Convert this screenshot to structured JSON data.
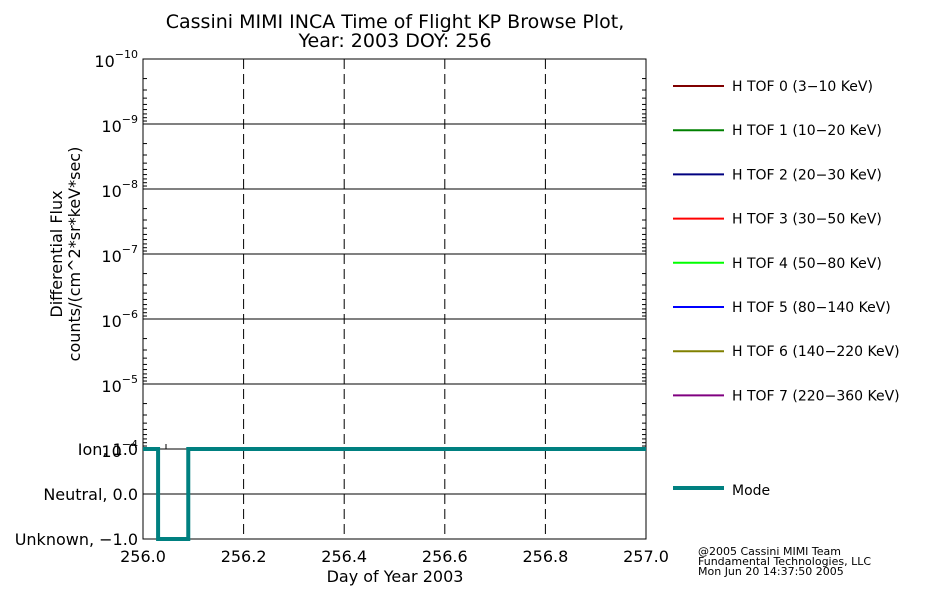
{
  "title_line1": "Cassini MIMI INCA Time of Flight KP Browse Plot,",
  "title_line2": "Year: 2003 DOY: 256",
  "ylabel_line1": "Differential Flux",
  "ylabel_line2": "counts/(cm^2*sr*keV*sec)",
  "xlabel": "Day of Year 2003",
  "credit": [
    "@2005 Cassini MIMI Team",
    "Fundamental Technologies, LLC",
    "Mon Jun 20 14:37:50 2005"
  ],
  "colors": {
    "mode": "#008080",
    "grid": "#000000"
  },
  "chart_data": [
    {
      "type": "line",
      "panel": "flux",
      "yscale": "log",
      "ylim": [
        1e-10,
        0.0001
      ],
      "xlim": [
        256.0,
        257.0
      ],
      "y_ticks": [
        {
          "value": 1e-10,
          "base": "10",
          "exp": "−10"
        },
        {
          "value": 1e-09,
          "base": "10",
          "exp": "−9"
        },
        {
          "value": 1e-08,
          "base": "10",
          "exp": "−8"
        },
        {
          "value": 1e-07,
          "base": "10",
          "exp": "−7"
        },
        {
          "value": 1e-06,
          "base": "10",
          "exp": "−6"
        },
        {
          "value": 1e-05,
          "base": "10",
          "exp": "−5"
        },
        {
          "value": 0.0001,
          "base": "10",
          "exp": "−4"
        }
      ],
      "series": [
        {
          "name": "H TOF 0 (3−10 KeV)",
          "color": "#800000",
          "values": []
        },
        {
          "name": "H TOF 1 (10−20 KeV)",
          "color": "#008000",
          "values": []
        },
        {
          "name": "H TOF 2 (20−30 KeV)",
          "color": "#000080",
          "values": []
        },
        {
          "name": "H TOF 3 (30−50 KeV)",
          "color": "#ff0000",
          "values": []
        },
        {
          "name": "H TOF 4 (50−80 KeV)",
          "color": "#00ff00",
          "values": []
        },
        {
          "name": "H TOF 5 (80−140 KeV)",
          "color": "#0000ff",
          "values": []
        },
        {
          "name": "H TOF 6 (140−220 KeV)",
          "color": "#808000",
          "values": []
        },
        {
          "name": "H TOF 7 (220−360 KeV)",
          "color": "#800080",
          "values": []
        }
      ]
    },
    {
      "type": "line",
      "panel": "mode",
      "ylim": [
        -1.0,
        1.0
      ],
      "xlim": [
        256.0,
        257.0
      ],
      "x_ticks": [
        "256.0",
        "256.2",
        "256.4",
        "256.6",
        "256.8",
        "257.0"
      ],
      "x_tick_values": [
        256.0,
        256.2,
        256.4,
        256.6,
        256.8,
        257.0
      ],
      "y_ticks": [
        {
          "value": 1.0,
          "label": "Ion, 1.0"
        },
        {
          "value": 0.0,
          "label": "Neutral, 0.0"
        },
        {
          "value": -1.0,
          "label": "Unknown, −1.0"
        }
      ],
      "series": [
        {
          "name": "Mode",
          "color": "#008080",
          "x": [
            256.0,
            256.03,
            256.03,
            256.09,
            256.09,
            257.0
          ],
          "y": [
            1.0,
            1.0,
            -1.0,
            -1.0,
            1.0,
            1.0
          ]
        }
      ]
    }
  ]
}
